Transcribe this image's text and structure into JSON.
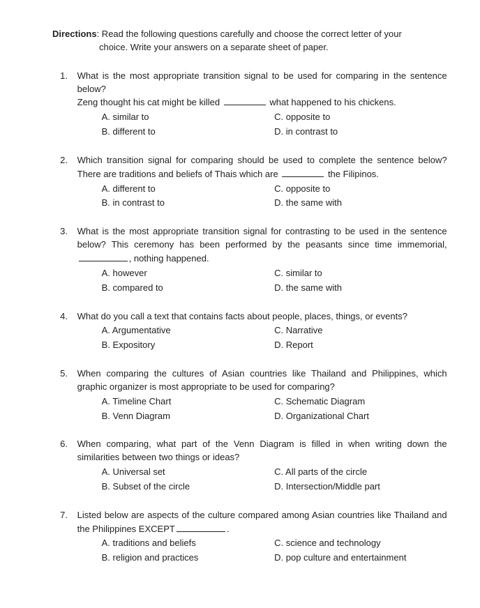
{
  "directions": {
    "label": "Directions",
    "line1": ": Read the following questions carefully and choose the correct letter of your",
    "line2": "choice. Write your answers on a separate sheet of paper."
  },
  "questions": [
    {
      "n": "1.",
      "text_pre": "What is the most appropriate transition signal to be used for comparing in the sentence below?",
      "sentence_pre": "Zeng thought his cat might be killed ",
      "sentence_post": " what happened to his chickens.",
      "a": "A.  similar to",
      "b": "B.  different to",
      "c": "C. opposite to",
      "d": "D. in contrast to"
    },
    {
      "n": "2.",
      "text_pre": "Which transition signal for comparing should be used to complete the sentence below?",
      "sentence_pre": "There are traditions and beliefs of Thais which are ",
      "sentence_post": " the Filipinos.",
      "a": "A.  different to",
      "b": "B.  in contrast to",
      "c": "C. opposite to",
      "d": "D. the same with"
    },
    {
      "n": "3.",
      "text_pre": "What is the most appropriate transition signal for contrasting to be used in the sentence below? This ceremony has been performed by the peasants since time immemorial, ",
      "sentence_post": ", nothing happened.",
      "a": "A.  however",
      "b": "B.  compared to",
      "c": "C. similar to",
      "d": "D. the same with"
    },
    {
      "n": "4.",
      "text_pre": "What do you call a text that contains facts about people, places, things, or events?",
      "a": "A.  Argumentative",
      "b": "B.  Expository",
      "c": "C. Narrative",
      "d": "D. Report"
    },
    {
      "n": "5.",
      "text_pre": "When comparing the cultures of Asian countries like Thailand and Philippines, which graphic organizer is most appropriate to be used for comparing?",
      "a": "A.  Timeline Chart",
      "b": "B.  Venn Diagram",
      "c": "C. Schematic Diagram",
      "d": "D. Organizational Chart"
    },
    {
      "n": "6.",
      "text_pre": "When comparing, what part of the Venn Diagram is filled in when writing down the similarities between two things or ideas?",
      "a": "A.  Universal set",
      "b": "B.  Subset of the circle",
      "c": "C. All parts of the circle",
      "d": "D. Intersection/Middle part"
    },
    {
      "n": "7.",
      "text_pre": "Listed below are aspects of the culture compared among Asian countries like Thailand and the Philippines EXCEPT",
      "text_post": ".",
      "a": "A.  traditions and beliefs",
      "b": "B.  religion and practices",
      "c": "C. science and technology",
      "d": "D. pop culture and entertainment"
    }
  ]
}
